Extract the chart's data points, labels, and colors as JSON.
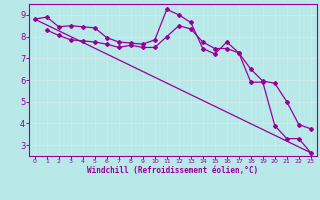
{
  "xlabel": "Windchill (Refroidissement éolien,°C)",
  "xlim": [
    -0.5,
    23.5
  ],
  "ylim": [
    2.5,
    9.5
  ],
  "yticks": [
    3,
    4,
    5,
    6,
    7,
    8,
    9
  ],
  "xticks": [
    0,
    1,
    2,
    3,
    4,
    5,
    6,
    7,
    8,
    9,
    10,
    11,
    12,
    13,
    14,
    15,
    16,
    17,
    18,
    19,
    20,
    21,
    22,
    23
  ],
  "bg_color": "#b8e8e8",
  "line_color": "#990099",
  "grid_color": "#d0e8e8",
  "curve1_x": [
    0,
    1,
    2,
    3,
    4,
    5,
    6,
    7,
    8,
    9,
    10,
    11,
    12,
    13,
    14,
    15,
    16,
    17,
    18,
    19,
    20,
    21,
    22,
    23
  ],
  "curve1_y": [
    8.8,
    8.9,
    8.45,
    8.5,
    8.45,
    8.4,
    7.95,
    7.75,
    7.7,
    7.65,
    7.85,
    9.25,
    9.0,
    8.65,
    7.45,
    7.2,
    7.75,
    7.25,
    5.9,
    5.9,
    3.9,
    3.3,
    3.3,
    2.65
  ],
  "curve2_x": [
    1,
    2,
    3,
    4,
    5,
    6,
    7,
    8,
    9,
    10,
    11,
    12,
    13,
    14,
    15,
    16,
    17,
    18,
    19,
    20,
    21,
    22,
    23
  ],
  "curve2_y": [
    8.3,
    8.05,
    7.85,
    7.8,
    7.75,
    7.65,
    7.5,
    7.6,
    7.5,
    7.5,
    8.0,
    8.5,
    8.35,
    7.75,
    7.45,
    7.45,
    7.25,
    6.5,
    5.95,
    5.85,
    5.0,
    3.95,
    3.75
  ],
  "curve3_x": [
    0,
    23
  ],
  "curve3_y": [
    8.8,
    2.65
  ]
}
